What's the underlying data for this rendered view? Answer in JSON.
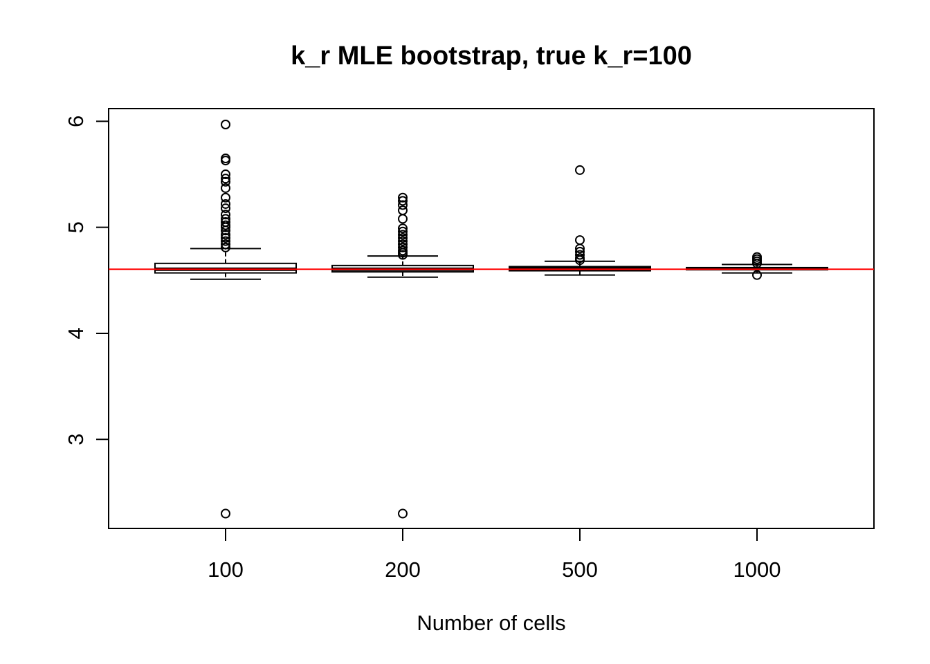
{
  "chart_data": {
    "type": "boxplot",
    "title": "k_r MLE bootstrap, true k_r=100",
    "xlabel": "Number of cells",
    "ylabel": "",
    "categories": [
      "100",
      "200",
      "500",
      "1000"
    ],
    "ylim": [
      2.16,
      6.12
    ],
    "yticks": [
      3,
      4,
      5,
      6
    ],
    "grid": false,
    "reference_line": {
      "y": 4.605,
      "color": "#ff0000"
    },
    "boxes": [
      {
        "category": "100",
        "whisker_low": 4.51,
        "q1": 4.57,
        "median": 4.605,
        "q3": 4.66,
        "whisker_high": 4.8,
        "outliers": [
          5.97,
          5.65,
          5.63,
          5.5,
          5.46,
          5.43,
          5.37,
          5.28,
          5.22,
          5.18,
          5.12,
          5.08,
          5.05,
          5.02,
          5.0,
          4.97,
          4.93,
          4.9,
          4.87,
          4.84,
          4.81,
          2.3
        ]
      },
      {
        "category": "200",
        "whisker_low": 4.53,
        "q1": 4.58,
        "median": 4.605,
        "q3": 4.64,
        "whisker_high": 4.73,
        "outliers": [
          5.28,
          5.25,
          5.21,
          5.16,
          5.08,
          4.99,
          4.96,
          4.93,
          4.9,
          4.87,
          4.84,
          4.81,
          4.78,
          4.76,
          4.74,
          2.3
        ]
      },
      {
        "category": "500",
        "whisker_low": 4.55,
        "q1": 4.59,
        "median": 4.61,
        "q3": 4.63,
        "whisker_high": 4.68,
        "outliers": [
          5.54,
          4.88,
          4.8,
          4.77,
          4.74,
          4.71,
          4.69
        ]
      },
      {
        "category": "1000",
        "whisker_low": 4.57,
        "q1": 4.6,
        "median": 4.61,
        "q3": 4.62,
        "whisker_high": 4.65,
        "outliers": [
          4.72,
          4.7,
          4.68,
          4.66,
          4.55
        ]
      }
    ]
  }
}
